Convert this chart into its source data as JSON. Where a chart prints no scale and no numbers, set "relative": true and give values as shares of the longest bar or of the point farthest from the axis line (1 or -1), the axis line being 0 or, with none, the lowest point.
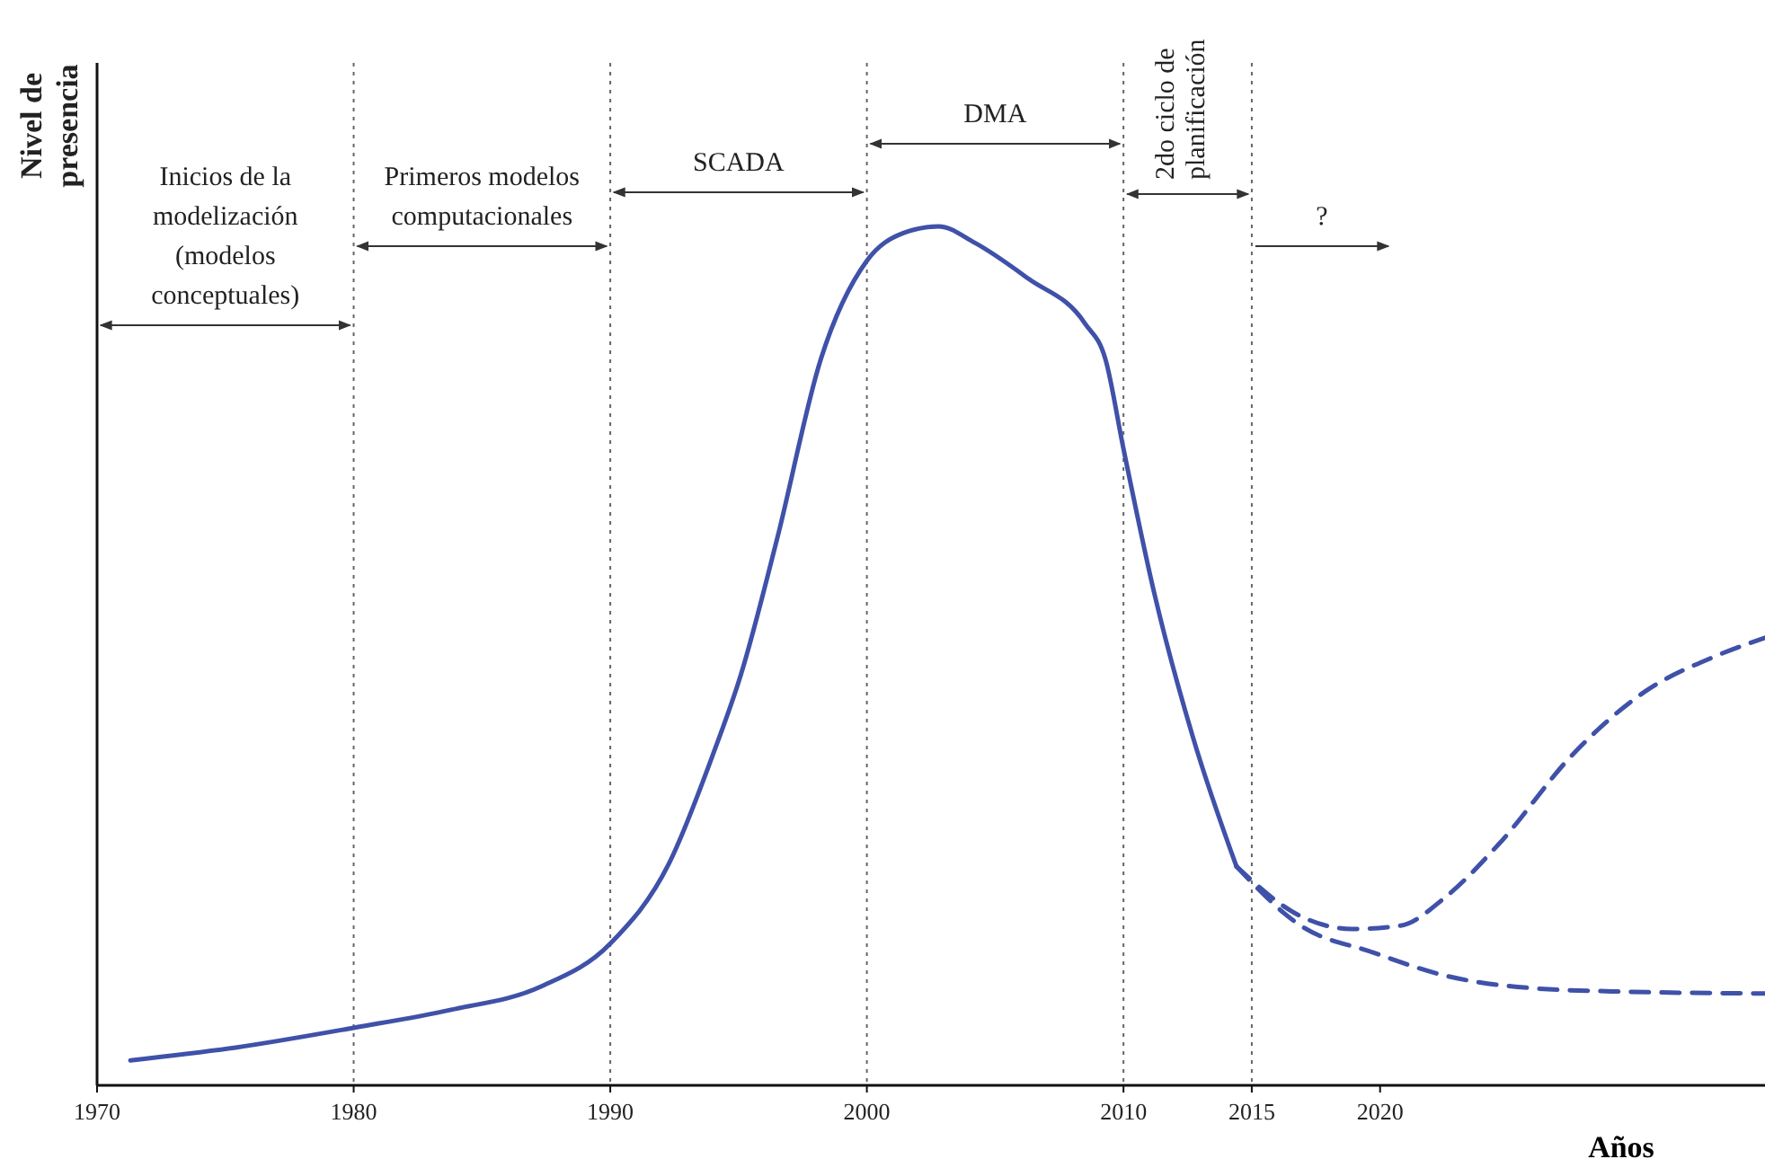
{
  "chart_data": {
    "type": "line",
    "relative": true,
    "xlabel": "Años",
    "ylabel": "Nivel de\npresencia",
    "xlim": [
      1970,
      2035
    ],
    "xticks": [
      1970,
      1980,
      1990,
      2000,
      2010,
      2015,
      2020
    ],
    "grid": false,
    "marker": "none",
    "series": [
      {
        "color": "#3f51a8",
        "line_style": "solid",
        "x": [
          1971.3,
          1975.4,
          1980,
          1983.8,
          1987.3,
          1990,
          1992.3,
          1994,
          1995.1,
          1996.5,
          1998.2,
          2000,
          2001.4,
          2002.8,
          2004.2,
          2006.3,
          2008.5,
          2009.3,
          2010,
          2011.2,
          2012.7,
          2014.4
        ],
        "values": [
          0.029,
          0.044,
          0.067,
          0.088,
          0.115,
          0.165,
          0.259,
          0.385,
          0.479,
          0.636,
          0.845,
          0.96,
          0.992,
          1,
          0.981,
          0.939,
          0.887,
          0.845,
          0.741,
          0.573,
          0.406,
          0.255
        ]
      },
      {
        "color": "#3f51a8",
        "line_style": "dashed",
        "x": [
          2014.4,
          2016.9,
          2018.9,
          2020.8,
          2022.5,
          2024.6,
          2027.5,
          2030.3,
          2033.1,
          2035
        ],
        "values": [
          0.255,
          0.197,
          0.182,
          0.186,
          0.218,
          0.28,
          0.385,
          0.458,
          0.5,
          0.521
        ]
      },
      {
        "color": "#3f51a8",
        "line_style": "dashed",
        "x": [
          2014.4,
          2016.9,
          2019.7,
          2022.5,
          2026,
          2029.6,
          2035
        ],
        "values": [
          0.255,
          0.186,
          0.155,
          0.128,
          0.113,
          0.109,
          0.107
        ]
      }
    ],
    "ref_lines": [
      {
        "axis": "x",
        "value": 1980,
        "line_style": "dotted"
      },
      {
        "axis": "x",
        "value": 1990,
        "line_style": "dotted"
      },
      {
        "axis": "x",
        "value": 2000,
        "line_style": "dotted"
      },
      {
        "axis": "x",
        "value": 2010,
        "line_style": "dotted"
      },
      {
        "axis": "x",
        "value": 2015,
        "line_style": "dotted"
      }
    ],
    "annotations": [
      "Inicios de la\nmodelización\n(modelos\nconceptuales)",
      "Primeros modelos\ncomputacionales",
      "SCADA",
      "DMA",
      "2do ciclo de\nplanificación",
      "?"
    ]
  }
}
